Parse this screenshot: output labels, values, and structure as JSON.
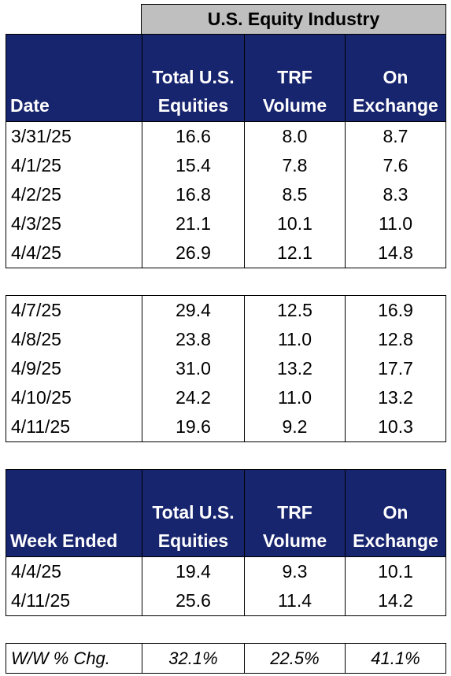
{
  "title": "U.S. Equity Industry",
  "daily": {
    "headers": {
      "date": "Date",
      "total_l1": "Total U.S.",
      "total_l2": "Equities",
      "trf_l1": "TRF",
      "trf_l2": "Volume",
      "onx_l1": "On",
      "onx_l2": "Exchange"
    },
    "week1": [
      {
        "date": "3/31/25",
        "total": "16.6",
        "trf": "8.0",
        "onx": "8.7"
      },
      {
        "date": "4/1/25",
        "total": "15.4",
        "trf": "7.8",
        "onx": "7.6"
      },
      {
        "date": "4/2/25",
        "total": "16.8",
        "trf": "8.5",
        "onx": "8.3"
      },
      {
        "date": "4/3/25",
        "total": "21.1",
        "trf": "10.1",
        "onx": "11.0"
      },
      {
        "date": "4/4/25",
        "total": "26.9",
        "trf": "12.1",
        "onx": "14.8"
      }
    ],
    "week2": [
      {
        "date": "4/7/25",
        "total": "29.4",
        "trf": "12.5",
        "onx": "16.9"
      },
      {
        "date": "4/8/25",
        "total": "23.8",
        "trf": "11.0",
        "onx": "12.8"
      },
      {
        "date": "4/9/25",
        "total": "31.0",
        "trf": "13.2",
        "onx": "17.7"
      },
      {
        "date": "4/10/25",
        "total": "24.2",
        "trf": "11.0",
        "onx": "13.2"
      },
      {
        "date": "4/11/25",
        "total": "19.6",
        "trf": "9.2",
        "onx": "10.3"
      }
    ]
  },
  "weekly": {
    "headers": {
      "date": "Week Ended",
      "total_l1": "Total U.S.",
      "total_l2": "Equities",
      "trf_l1": "TRF",
      "trf_l2": "Volume",
      "onx_l1": "On",
      "onx_l2": "Exchange"
    },
    "rows": [
      {
        "date": "4/4/25",
        "total": "19.4",
        "trf": "9.3",
        "onx": "10.1"
      },
      {
        "date": "4/11/25",
        "total": "25.6",
        "trf": "11.4",
        "onx": "14.2"
      }
    ]
  },
  "ww": {
    "label": "W/W % Chg.",
    "total": "32.1%",
    "trf": "22.5%",
    "onx": "41.1%"
  }
}
